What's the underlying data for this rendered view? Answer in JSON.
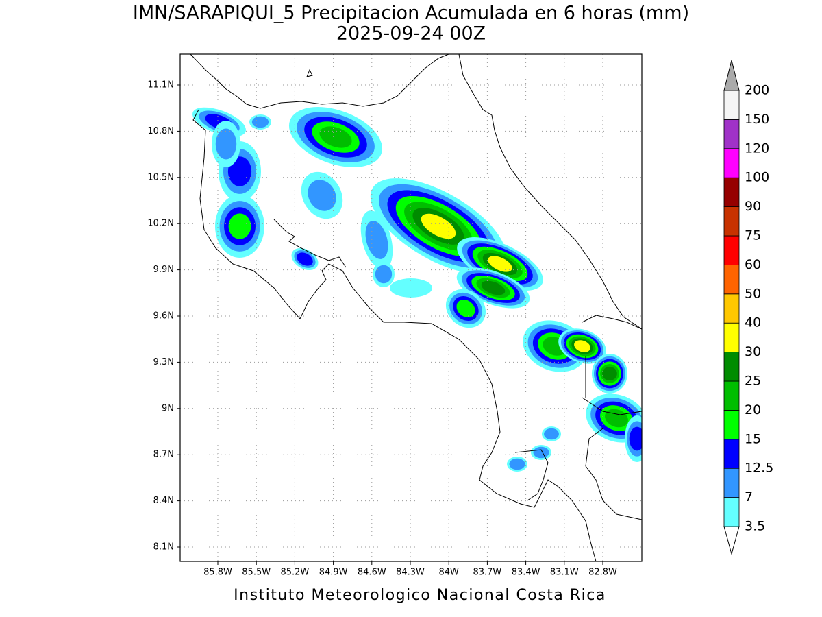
{
  "title": "IMN/SARAPIQUI_5 Precipitacion Acumulada en 6 horas (mm)",
  "subtitle": "2025-09-24 00Z",
  "footer": "Instituto Meteorologico Nacional Costa Rica",
  "map": {
    "lat_labels": [
      "11.1N",
      "10.8N",
      "10.5N",
      "10.2N",
      "9.9N",
      "9.6N",
      "9.3N",
      "9N",
      "8.7N",
      "8.4N",
      "8.1N"
    ],
    "lon_labels": [
      "85.8W",
      "85.5W",
      "85.2W",
      "84.9W",
      "84.6W",
      "84.3W",
      "84W",
      "83.7W",
      "83.4W",
      "83.1W",
      "82.8W"
    ]
  },
  "colorbar": {
    "labels": [
      "3.5",
      "7",
      "12.5",
      "15",
      "20",
      "25",
      "30",
      "40",
      "50",
      "60",
      "75",
      "90",
      "100",
      "120",
      "150",
      "200"
    ],
    "colors": [
      "#64ffff",
      "#3296ff",
      "#0000ff",
      "#00ff00",
      "#00be00",
      "#008c00",
      "#ffff00",
      "#ffc800",
      "#ff6400",
      "#ff0000",
      "#c83200",
      "#960000",
      "#ff00ff",
      "#a032c8",
      "#f5f5f5"
    ],
    "over_color": "#aaaaaa",
    "under_color": "#ffffff"
  }
}
